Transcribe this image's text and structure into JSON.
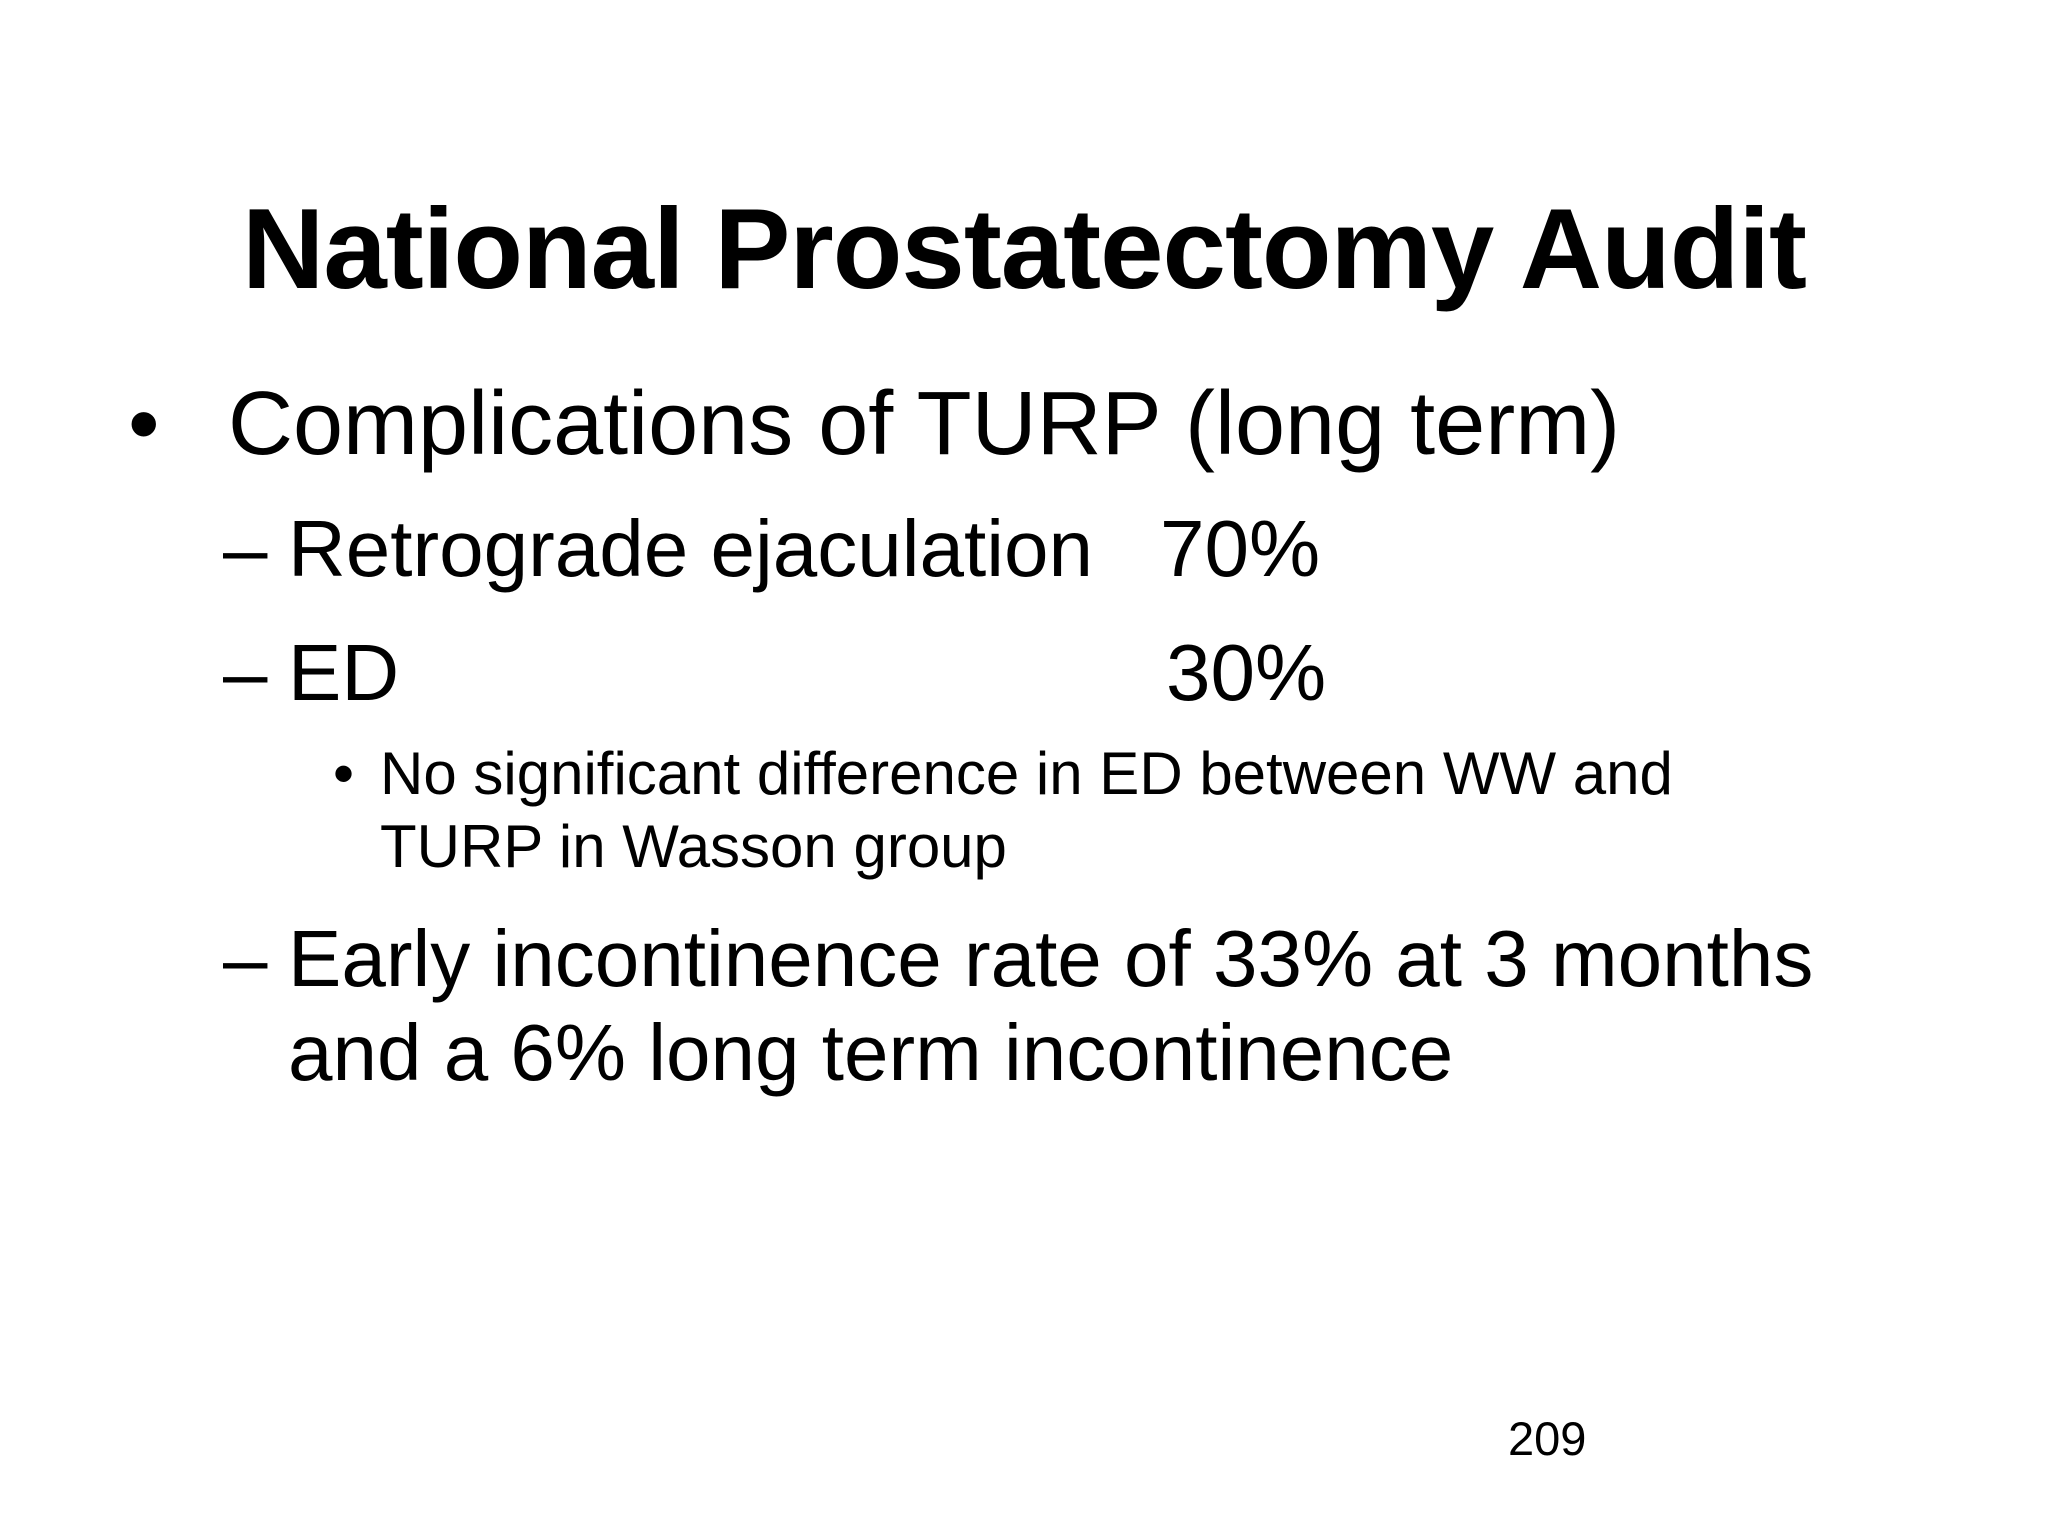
{
  "slide": {
    "title": "National Prostatectomy Audit",
    "page_number": "209",
    "colors": {
      "background": "#ffffff",
      "text": "#000000"
    },
    "bullets": [
      {
        "level": 1,
        "marker": "•",
        "text": "Complications of TURP (long term)"
      },
      {
        "level": 2,
        "marker": "–",
        "label": "Retrograde ejaculation",
        "value": "70%"
      },
      {
        "level": 2,
        "marker": "–",
        "label": "ED",
        "value": "30%"
      },
      {
        "level": 3,
        "marker": "•",
        "lines": [
          "No significant difference in ED between WW and",
          "TURP in Wasson group"
        ]
      },
      {
        "level": 2,
        "marker": "–",
        "lines": [
          "Early incontinence rate of 33% at 3 months",
          "and a 6% long term incontinence"
        ]
      }
    ]
  }
}
